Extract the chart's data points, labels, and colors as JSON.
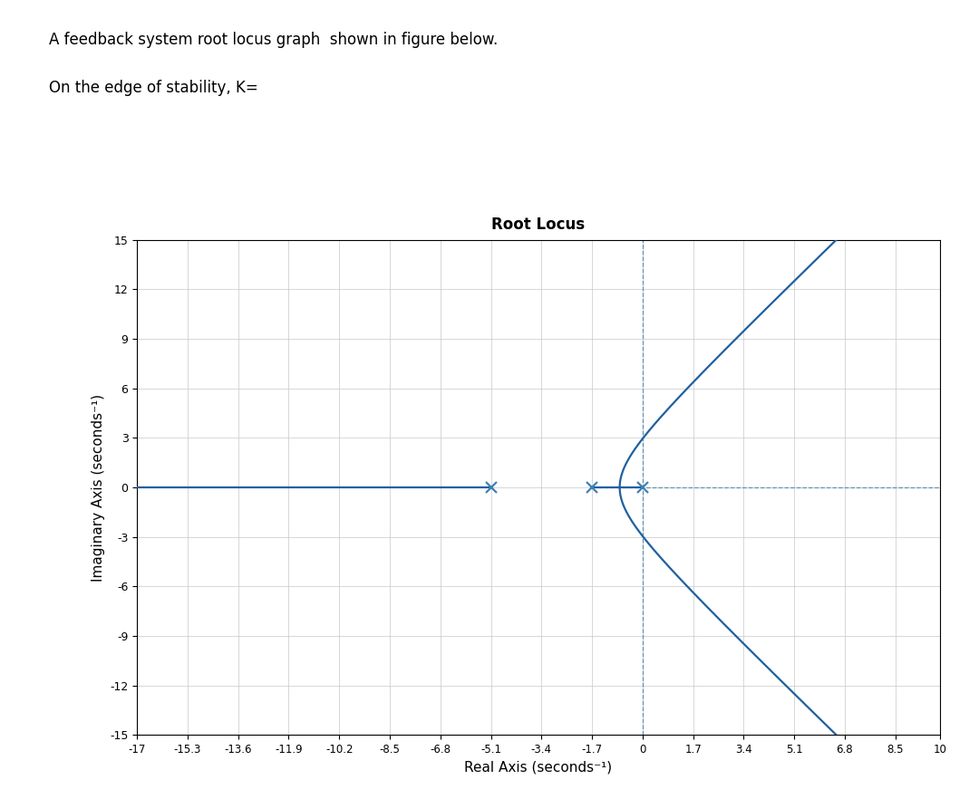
{
  "title": "Root Locus",
  "xlabel": "Real Axis (seconds⁻¹)",
  "ylabel": "Imaginary Axis (seconds⁻¹)",
  "line_color": "#2060a0",
  "dashed_color": "#4080b0",
  "marker_color": "#4080b0",
  "xlim": [
    -17,
    10
  ],
  "ylim": [
    -15,
    15
  ],
  "xticks": [
    -17,
    -15.3,
    -13.6,
    -11.9,
    -10.2,
    -8.5,
    -6.8,
    -5.1,
    -3.4,
    -1.7,
    0,
    1.7,
    3.4,
    5.1,
    6.8,
    8.5,
    10
  ],
  "yticks": [
    -15,
    -12,
    -9,
    -6,
    -3,
    0,
    3,
    6,
    9,
    12,
    15
  ],
  "poles": [
    -5.1,
    -1.7,
    0.0
  ],
  "dashed_vertical_x": 0.0,
  "background_color": "#ffffff",
  "text_line1": "A feedback system root locus graph  shown in figure below.",
  "text_line2": "On the edge of stability, K="
}
